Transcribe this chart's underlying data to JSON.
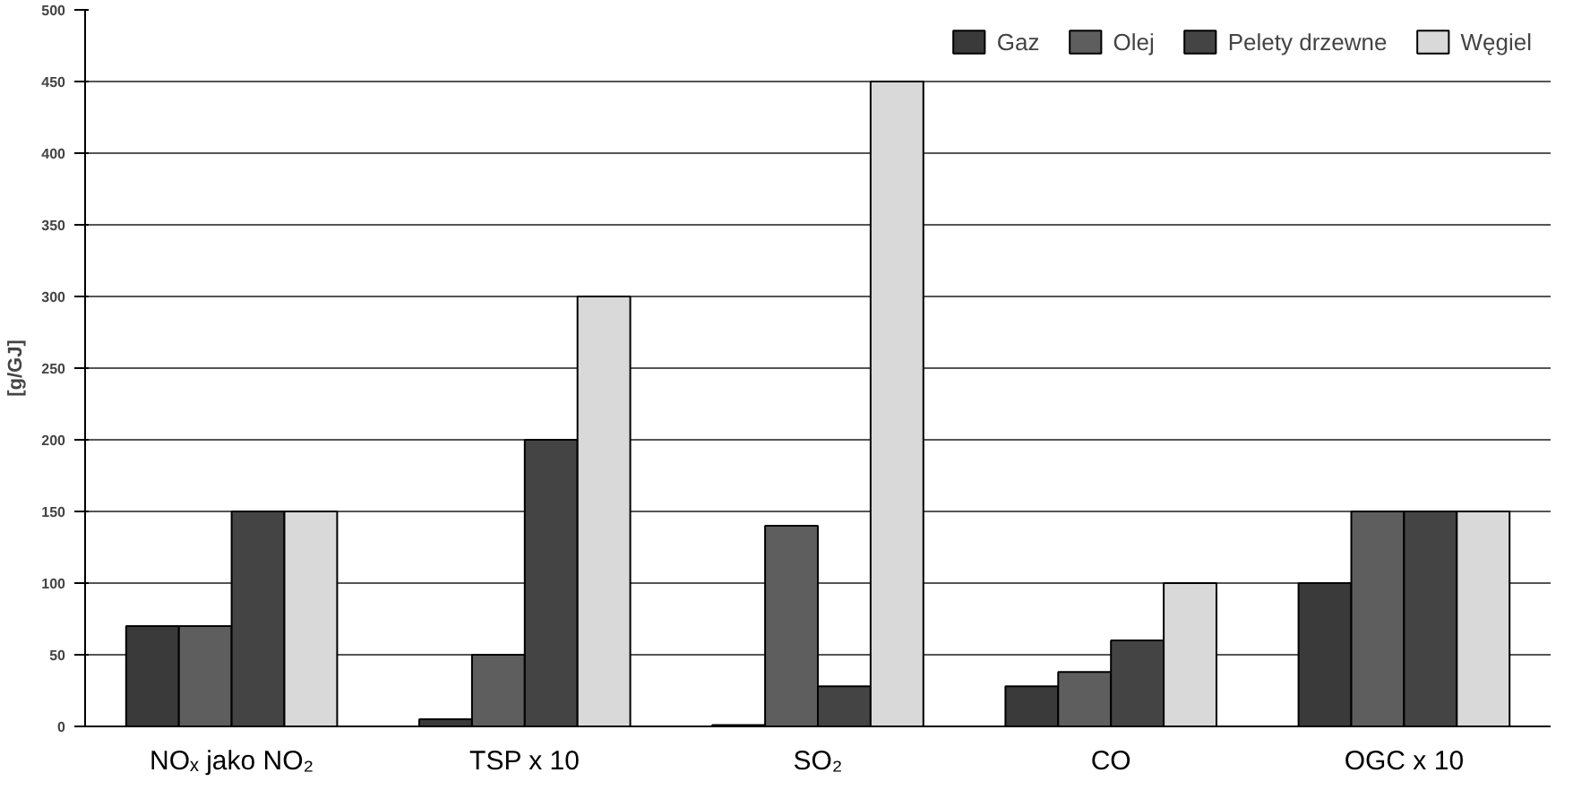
{
  "chart_data": {
    "type": "bar",
    "ylabel": "[g/GJ]",
    "categories": [
      "NOₓ jako NO₂",
      "TSP x 10",
      "SO₂",
      "CO",
      "OGC x 10"
    ],
    "series": [
      {
        "name": "Gaz",
        "color": "#3a3a3a",
        "values": [
          70,
          5,
          1,
          28,
          100
        ]
      },
      {
        "name": "Olej",
        "color": "#5e5e5e",
        "values": [
          70,
          50,
          140,
          38,
          150
        ]
      },
      {
        "name": "Pelety drzewne",
        "color": "#444444",
        "values": [
          150,
          200,
          28,
          60,
          150
        ]
      },
      {
        "name": "Węgiel",
        "color": "#d9d9d9",
        "values": [
          150,
          300,
          450,
          100,
          150
        ]
      }
    ],
    "ylim": [
      0,
      500
    ],
    "yticks": [
      0,
      50,
      100,
      150,
      200,
      250,
      300,
      350,
      400,
      450,
      500
    ],
    "grid": "y",
    "legend": "top right"
  }
}
